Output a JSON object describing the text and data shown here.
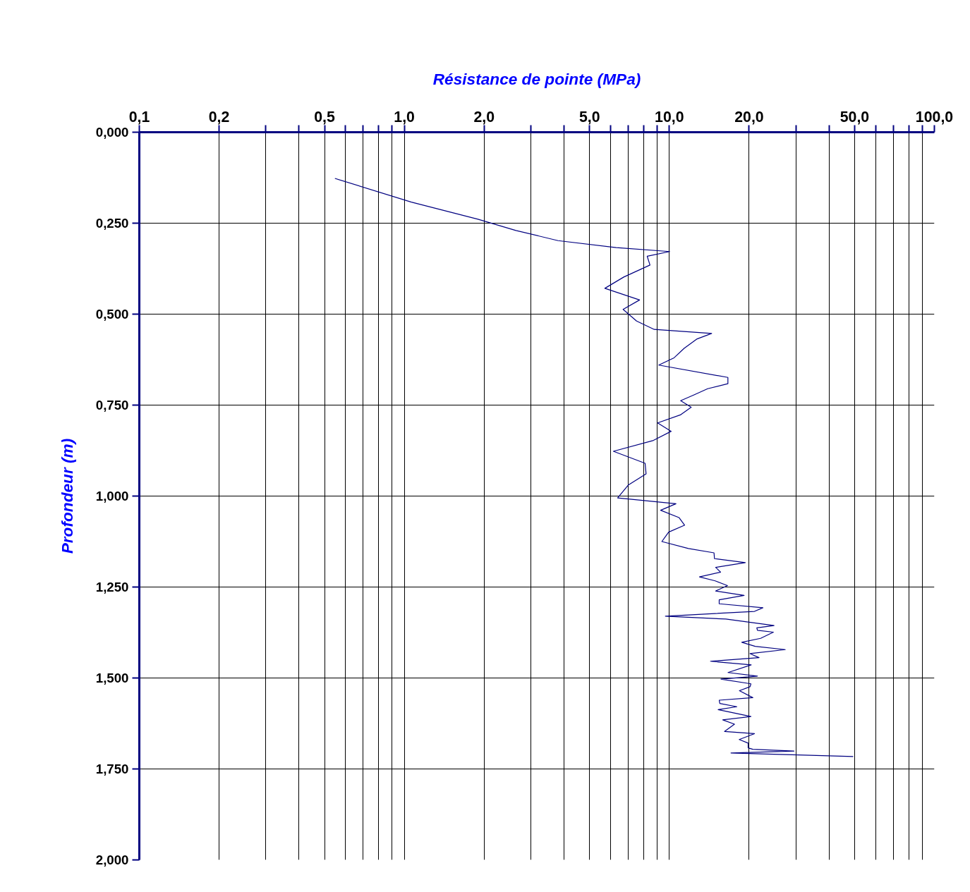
{
  "chart_data": {
    "type": "line",
    "xlabel": "Résistance de pointe (MPa)",
    "ylabel": "Profondeur (m)",
    "log": "x",
    "grid": true,
    "xlim": [
      0.1,
      100
    ],
    "ylim": [
      2.0,
      0
    ],
    "xticks": [
      {
        "value": 0.1,
        "label": "0,1"
      },
      {
        "value": 0.2,
        "label": "0,2"
      },
      {
        "value": 0.3,
        "label": null
      },
      {
        "value": 0.4,
        "label": null
      },
      {
        "value": 0.5,
        "label": "0,5"
      },
      {
        "value": 0.6,
        "label": null
      },
      {
        "value": 0.7,
        "label": null
      },
      {
        "value": 0.8,
        "label": null
      },
      {
        "value": 0.9,
        "label": null
      },
      {
        "value": 1,
        "label": "1,0"
      },
      {
        "value": 2,
        "label": "2,0"
      },
      {
        "value": 3,
        "label": null
      },
      {
        "value": 4,
        "label": null
      },
      {
        "value": 5,
        "label": "5,0"
      },
      {
        "value": 6,
        "label": null
      },
      {
        "value": 7,
        "label": null
      },
      {
        "value": 8,
        "label": null
      },
      {
        "value": 9,
        "label": null
      },
      {
        "value": 10,
        "label": "10,0"
      },
      {
        "value": 20,
        "label": "20,0"
      },
      {
        "value": 30,
        "label": null
      },
      {
        "value": 40,
        "label": null
      },
      {
        "value": 50,
        "label": "50,0"
      },
      {
        "value": 60,
        "label": null
      },
      {
        "value": 70,
        "label": null
      },
      {
        "value": 80,
        "label": null
      },
      {
        "value": 90,
        "label": null
      },
      {
        "value": 100,
        "label": "100,0"
      }
    ],
    "yticks": [
      {
        "value": 0,
        "label": "0,000"
      },
      {
        "value": 0.25,
        "label": "0,250"
      },
      {
        "value": 0.5,
        "label": "0,500"
      },
      {
        "value": 0.75,
        "label": "0,750"
      },
      {
        "value": 1.0,
        "label": "1,000"
      },
      {
        "value": 1.25,
        "label": "1,250"
      },
      {
        "value": 1.5,
        "label": "1,500"
      },
      {
        "value": 1.75,
        "label": "1,750"
      },
      {
        "value": 2.0,
        "label": "2,000"
      }
    ],
    "series": [
      {
        "color": "#000080",
        "x": [
          0.547,
          1.063,
          1.895,
          2.636,
          3.8,
          6.3,
          10.03,
          8.25,
          8.45,
          6.73,
          5.71,
          7.72,
          6.69,
          7.52,
          8.77,
          14.44,
          12.73,
          11.37,
          10.42,
          9.12,
          16.63,
          16.63,
          13.95,
          12.39,
          11.03,
          12.09,
          11.0,
          9.03,
          10.16,
          8.71,
          6.15,
          8.1,
          8.17,
          6.99,
          6.38,
          10.59,
          9.27,
          10.87,
          11.42,
          9.94,
          9.37,
          11.8,
          14.74,
          14.8,
          19.35,
          14.95,
          15.61,
          12.99,
          14.89,
          16.57,
          14.95,
          19.15,
          15.42,
          15.42,
          22.55,
          20.95,
          9.66,
          16.33,
          24.83,
          21.38,
          21.5,
          24.7,
          22.1,
          18.76,
          21.08,
          27.38,
          20.16,
          21.8,
          14.3,
          20.36,
          16.65,
          21.5,
          15.65,
          20.32,
          20.16,
          18.38,
          20.65,
          15.42,
          15.5,
          17.97,
          15.28,
          20.32,
          15.9,
          17.61,
          16.16,
          20.95,
          18.35,
          19.83,
          19.83,
          20.65,
          29.53,
          17.08,
          49.4
        ],
        "values": [
          0.127,
          0.192,
          0.239,
          0.27,
          0.298,
          0.317,
          0.328,
          0.341,
          0.365,
          0.398,
          0.429,
          0.461,
          0.487,
          0.519,
          0.542,
          0.553,
          0.568,
          0.594,
          0.62,
          0.64,
          0.674,
          0.691,
          0.705,
          0.722,
          0.738,
          0.756,
          0.777,
          0.799,
          0.822,
          0.847,
          0.877,
          0.91,
          0.939,
          0.97,
          1.005,
          1.021,
          1.039,
          1.059,
          1.08,
          1.099,
          1.125,
          1.144,
          1.156,
          1.172,
          1.183,
          1.196,
          1.209,
          1.222,
          1.233,
          1.246,
          1.261,
          1.273,
          1.285,
          1.296,
          1.307,
          1.317,
          1.33,
          1.338,
          1.356,
          1.362,
          1.369,
          1.374,
          1.391,
          1.402,
          1.413,
          1.422,
          1.433,
          1.444,
          1.454,
          1.464,
          1.485,
          1.495,
          1.503,
          1.516,
          1.524,
          1.535,
          1.554,
          1.561,
          1.57,
          1.579,
          1.587,
          1.606,
          1.615,
          1.627,
          1.647,
          1.653,
          1.669,
          1.679,
          1.692,
          1.696,
          1.701,
          1.706,
          1.716
        ]
      }
    ]
  }
}
